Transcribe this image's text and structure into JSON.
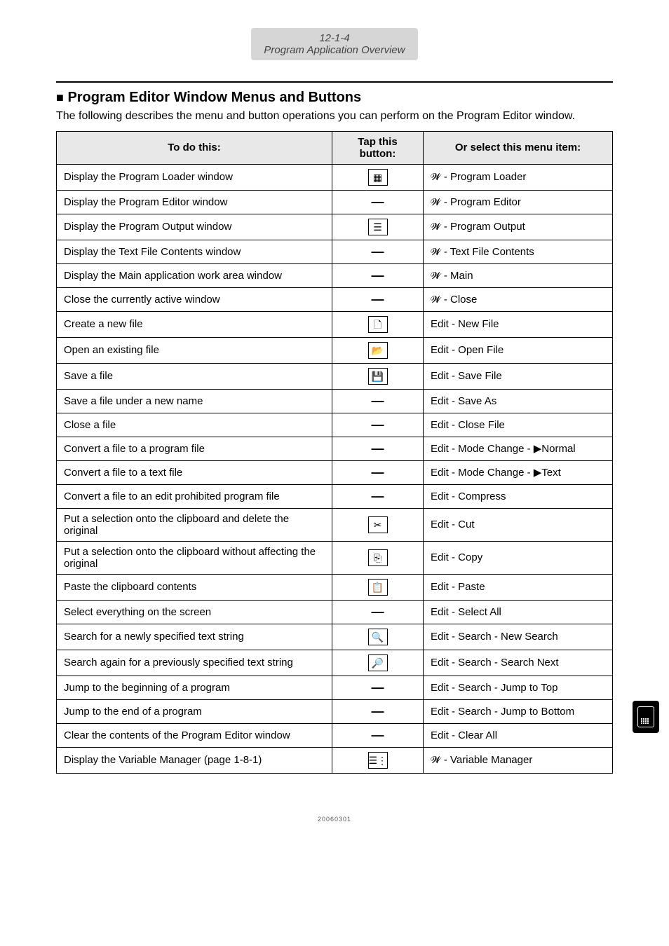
{
  "header": {
    "page_num": "12-1-4",
    "page_title": "Program Application Overview"
  },
  "section": {
    "title_bullet": "■",
    "title": "Program Editor Window Menus and Buttons",
    "intro": "The following describes the menu and button operations you can perform on the Program Editor window."
  },
  "table": {
    "headers": {
      "col1": "To do this:",
      "col2": "Tap this button:",
      "col3": "Or select this menu item:"
    },
    "rows": [
      {
        "action": "Display the Program Loader window",
        "btn_type": "icon",
        "btn": "▦",
        "menu_prefix": "𝓦",
        "menu": " - Program Loader"
      },
      {
        "action": "Display the Program Editor window",
        "btn_type": "none",
        "btn": "—",
        "menu_prefix": "𝓦",
        "menu": " - Program Editor"
      },
      {
        "action": "Display the Program Output window",
        "btn_type": "icon",
        "btn": "☰",
        "menu_prefix": "𝓦",
        "menu": " - Program Output"
      },
      {
        "action": "Display the Text File Contents window",
        "btn_type": "none",
        "btn": "—",
        "menu_prefix": "𝓦",
        "menu": " - Text File Contents"
      },
      {
        "action": "Display the Main application work area window",
        "btn_type": "none",
        "btn": "—",
        "menu_prefix": "𝓦",
        "menu": " - Main"
      },
      {
        "action": "Close the currently active window",
        "btn_type": "none",
        "btn": "—",
        "menu_prefix": "𝓦",
        "menu": " - Close"
      },
      {
        "action": "Create a new file",
        "btn_type": "icon",
        "btn": "🗋",
        "menu_prefix": "",
        "menu": "Edit - New File"
      },
      {
        "action": "Open an existing file",
        "btn_type": "icon",
        "btn": "📂",
        "menu_prefix": "",
        "menu": "Edit - Open File"
      },
      {
        "action": "Save a file",
        "btn_type": "icon",
        "btn": "💾",
        "menu_prefix": "",
        "menu": "Edit - Save File"
      },
      {
        "action": "Save a file under a new name",
        "btn_type": "none",
        "btn": "—",
        "menu_prefix": "",
        "menu": "Edit - Save As"
      },
      {
        "action": "Close a file",
        "btn_type": "none",
        "btn": "—",
        "menu_prefix": "",
        "menu": "Edit - Close File"
      },
      {
        "action": "Convert a file to a program file",
        "btn_type": "none",
        "btn": "—",
        "menu_prefix": "",
        "menu": "Edit - Mode Change - ▶Normal"
      },
      {
        "action": "Convert a file to a text file",
        "btn_type": "none",
        "btn": "—",
        "menu_prefix": "",
        "menu": "Edit - Mode Change - ▶Text"
      },
      {
        "action": "Convert a file to an edit prohibited program file",
        "btn_type": "none",
        "btn": "—",
        "menu_prefix": "",
        "menu": "Edit - Compress"
      },
      {
        "action": "Put a selection onto the clipboard and delete the original",
        "btn_type": "icon",
        "btn": "✂",
        "menu_prefix": "",
        "menu": "Edit - Cut"
      },
      {
        "action": "Put a selection onto the clipboard without affecting the original",
        "btn_type": "icon",
        "btn": "⎘",
        "menu_prefix": "",
        "menu": "Edit - Copy"
      },
      {
        "action": "Paste the clipboard contents",
        "btn_type": "icon",
        "btn": "📋",
        "menu_prefix": "",
        "menu": "Edit - Paste"
      },
      {
        "action": "Select everything on the screen",
        "btn_type": "none",
        "btn": "—",
        "menu_prefix": "",
        "menu": "Edit - Select All"
      },
      {
        "action": "Search for a newly specified text string",
        "btn_type": "icon",
        "btn": "🔍",
        "menu_prefix": "",
        "menu": "Edit - Search - New Search"
      },
      {
        "action": "Search again for a previously specified text string",
        "btn_type": "icon",
        "btn": "🔎",
        "menu_prefix": "",
        "menu": "Edit - Search - Search Next"
      },
      {
        "action": "Jump to the beginning of a program",
        "btn_type": "none",
        "btn": "—",
        "menu_prefix": "",
        "menu": "Edit - Search - Jump to Top"
      },
      {
        "action": "Jump to the end of a program",
        "btn_type": "none",
        "btn": "—",
        "menu_prefix": "",
        "menu": "Edit - Search - Jump to Bottom"
      },
      {
        "action": "Clear the contents of the Program Editor window",
        "btn_type": "none",
        "btn": "—",
        "menu_prefix": "",
        "menu": "Edit - Clear All"
      },
      {
        "action": "Display the Variable Manager (page 1-8-1)",
        "btn_type": "icon",
        "btn": "☰⋮",
        "menu_prefix": "𝓦",
        "menu": " - Variable Manager"
      }
    ]
  },
  "footer": "20060301"
}
